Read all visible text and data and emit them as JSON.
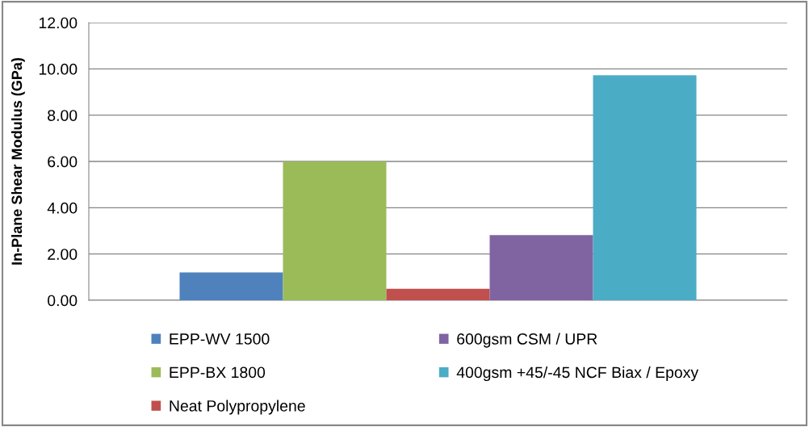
{
  "chart_data": {
    "type": "bar",
    "ylabel": "In-Plane Shear Modulus (GPa)",
    "categories": [
      null
    ],
    "series": [
      {
        "name": "EPP-WV 1500",
        "color": "#4f81bd",
        "values": [
          1.2
        ]
      },
      {
        "name": "EPP-BX 1800",
        "color": "#9bbb59",
        "values": [
          6.0
        ]
      },
      {
        "name": "Neat Polypropylene",
        "color": "#c0504d",
        "values": [
          0.5
        ]
      },
      {
        "name": "600gsm CSM / UPR",
        "color": "#8064a2",
        "values": [
          2.82
        ]
      },
      {
        "name": "400gsm +45/-45 NCF Biax / Epoxy",
        "color": "#4bacc6",
        "values": [
          9.72
        ]
      }
    ],
    "ylim": [
      0,
      12
    ],
    "yticks": [
      {
        "value": 0,
        "label": "0.00"
      },
      {
        "value": 2,
        "label": "2.00"
      },
      {
        "value": 4,
        "label": "4.00"
      },
      {
        "value": 6,
        "label": "6.00"
      },
      {
        "value": 8,
        "label": "8.00"
      },
      {
        "value": 10,
        "label": "10.00"
      },
      {
        "value": 12,
        "label": "12.00"
      }
    ],
    "grid": "y",
    "legend": "bottom"
  }
}
